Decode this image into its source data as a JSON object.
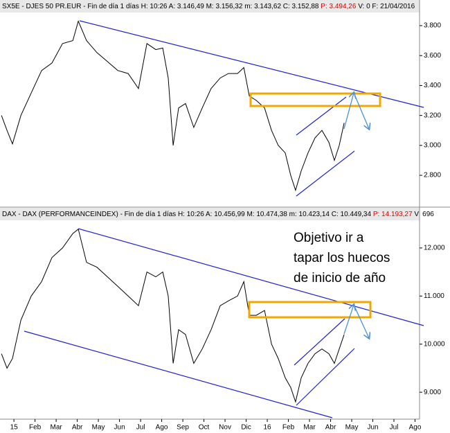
{
  "chart_data": [
    {
      "type": "line",
      "header": [
        "SX5E - DJES 50 PR.EUR - Fin de día 1 días H: 10:26 A: 3.146,49 M: 3.156,32 m: 3.143,62 C: 3.152,88",
        "P: 3.494,26",
        "V: 0 F: 21/04/2016"
      ],
      "color": "#000000",
      "x": [
        -0.59,
        -0.33,
        -0.07,
        0.33,
        0.82,
        1.31,
        1.8,
        2.3,
        2.79,
        3.05,
        3.44,
        3.93,
        4.43,
        4.92,
        5.41,
        5.9,
        6.3,
        6.72,
        7.05,
        7.31,
        7.54,
        7.8,
        8.13,
        8.52,
        8.92,
        9.34,
        9.77,
        10.16,
        10.59,
        10.89,
        11.15,
        11.48,
        11.87,
        12.2,
        12.52,
        12.85,
        13.11,
        13.34,
        13.61,
        13.93,
        14.26,
        14.59,
        14.92,
        15.18,
        15.41,
        15.64
      ],
      "values": [
        3200,
        3100,
        3010,
        3200,
        3350,
        3500,
        3550,
        3680,
        3700,
        3830,
        3700,
        3620,
        3560,
        3500,
        3480,
        3380,
        3680,
        3640,
        3650,
        3450,
        3000,
        3250,
        3280,
        3120,
        3250,
        3380,
        3450,
        3480,
        3480,
        3520,
        3330,
        3300,
        3250,
        3100,
        3000,
        2950,
        2800,
        2700,
        2830,
        2950,
        3050,
        3100,
        3020,
        2900,
        3000,
        3150
      ],
      "xlim": [
        -0.66,
        19.18
      ],
      "ylim": [
        2592,
        3888
      ],
      "yticks": [
        {
          "value": 2800,
          "label": "2.800"
        },
        {
          "value": 3000,
          "label": "3.000"
        },
        {
          "value": 3200,
          "label": "3.200"
        },
        {
          "value": 3400,
          "label": "3.400"
        },
        {
          "value": 3600,
          "label": "3.600"
        },
        {
          "value": 3800,
          "label": "3.800"
        }
      ]
    },
    {
      "type": "line",
      "header": [
        "DAX - DAX (PERFORMANCEINDEX) - Fin de día 1 días H: 10:26 A: 10.456,99 M: 10.474,38 m: 10.423,14 C: 10.449,34",
        "P: 14.193,27",
        "V: 696"
      ],
      "color": "#000000",
      "annotation": [
        "Objetivo ir a",
        "tapar los huecos",
        "de inicio de año"
      ],
      "x": [
        -0.59,
        -0.33,
        -0.07,
        0.33,
        0.82,
        1.31,
        1.8,
        2.3,
        2.79,
        3.05,
        3.44,
        3.93,
        4.43,
        4.92,
        5.41,
        5.9,
        6.3,
        6.72,
        7.05,
        7.31,
        7.54,
        7.8,
        8.13,
        8.52,
        8.92,
        9.34,
        9.77,
        10.16,
        10.59,
        10.89,
        11.15,
        11.48,
        11.87,
        12.2,
        12.52,
        12.85,
        13.11,
        13.34,
        13.61,
        13.93,
        14.26,
        14.59,
        14.92,
        15.18,
        15.41,
        15.64
      ],
      "values": [
        9800,
        9500,
        9700,
        10500,
        11000,
        11300,
        11800,
        12000,
        12300,
        12390,
        11700,
        11600,
        11400,
        11200,
        11000,
        10800,
        11500,
        11400,
        11500,
        11000,
        9600,
        10300,
        10200,
        9600,
        9900,
        10300,
        10800,
        10900,
        11000,
        11300,
        10600,
        10600,
        10700,
        10000,
        9700,
        9300,
        9100,
        8800,
        9300,
        9600,
        9800,
        9900,
        9800,
        9600,
        9900,
        10200
      ],
      "xlim": [
        -0.66,
        19.18
      ],
      "ylim": [
        8440,
        12575
      ],
      "xticks": [
        {
          "value": 0,
          "label": "15"
        },
        {
          "value": 1,
          "label": "Feb"
        },
        {
          "value": 2,
          "label": "Mar"
        },
        {
          "value": 3,
          "label": "Abr"
        },
        {
          "value": 4,
          "label": "May"
        },
        {
          "value": 5,
          "label": "Jun"
        },
        {
          "value": 6,
          "label": "Jul"
        },
        {
          "value": 7,
          "label": "Ago"
        },
        {
          "value": 8,
          "label": "Sep"
        },
        {
          "value": 9,
          "label": "Oct"
        },
        {
          "value": 10,
          "label": "Nov"
        },
        {
          "value": 11,
          "label": "Dic"
        },
        {
          "value": 12,
          "label": "16"
        },
        {
          "value": 13,
          "label": "Feb"
        },
        {
          "value": 14,
          "label": "Mar"
        },
        {
          "value": 15,
          "label": "Abr"
        },
        {
          "value": 16,
          "label": "May"
        },
        {
          "value": 17,
          "label": "Jun"
        },
        {
          "value": 18,
          "label": "Jul"
        },
        {
          "value": 19,
          "label": "Ago"
        }
      ],
      "yticks": [
        {
          "value": 9000,
          "label": "9.000"
        },
        {
          "value": 10000,
          "label": "10.000"
        },
        {
          "value": 11000,
          "label": "11.000"
        },
        {
          "value": 12000,
          "label": "12.000"
        }
      ]
    }
  ]
}
